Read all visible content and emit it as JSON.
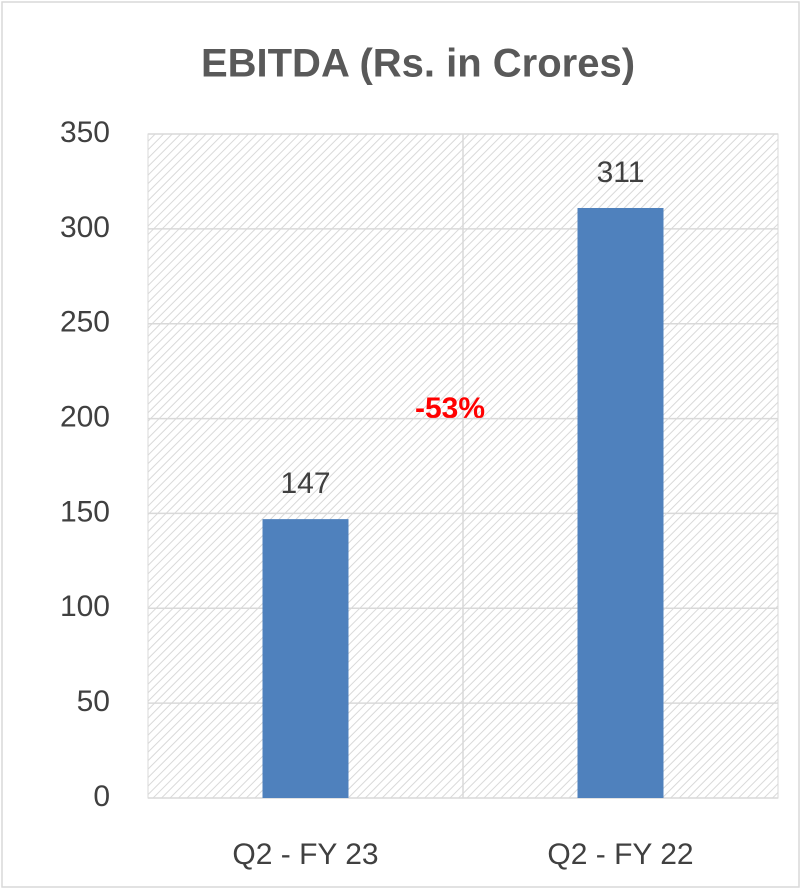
{
  "chart_data": {
    "type": "bar",
    "title": "EBITDA (Rs. in Crores)",
    "categories": [
      "Q2 - FY 23",
      "Q2 - FY 22"
    ],
    "values": [
      147,
      311
    ],
    "color": "#4f81bd",
    "ylim": [
      0,
      350
    ],
    "yticks": [
      0,
      50,
      100,
      150,
      200,
      250,
      300,
      350
    ],
    "grid": true,
    "annotation": "-53%"
  }
}
